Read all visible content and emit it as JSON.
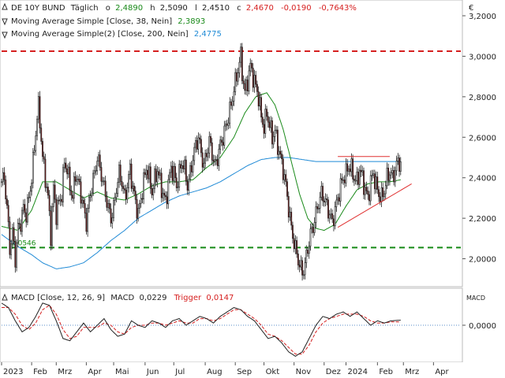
{
  "chart_data": [
    {
      "type": "line",
      "panel": "price",
      "currency_label": "€",
      "legend": [
        {
          "prefix": "DE 10Y BUND",
          "interval": "Täglich",
          "o_label": "o",
          "o": "2,4890",
          "h_label": "h",
          "h": "2,5090",
          "l_label": "l",
          "l": "2,4510",
          "c_label": "c",
          "c": "2,4670",
          "change": "-0,0190",
          "change_pct": "-0,7643%"
        },
        {
          "name": "Moving Average Simple [Close, 38, Nein]",
          "value": "2,3893",
          "color": "#1a8a1a"
        },
        {
          "name": "Moving Average Simple(2) [Close, 200, Nein]",
          "value": "2,4775",
          "color": "#1f8ad6"
        }
      ],
      "y_ticks": [
        "3,2000",
        "3,0000",
        "2,8000",
        "2,6000",
        "2,4000",
        "2,2000",
        "2,0000"
      ],
      "y_tick_values": [
        3.2,
        3.0,
        2.8,
        2.6,
        2.4,
        2.2,
        2.0
      ],
      "ylim": [
        1.87,
        3.27
      ],
      "x_labels": [
        "2023",
        "Feb",
        "Mrz",
        "Apr",
        "Mai",
        "Jun",
        "Jul",
        "Aug",
        "Sep",
        "Okt",
        "Nov",
        "Dez",
        "2024",
        "Feb",
        "Mrz",
        "Apr"
      ],
      "x_label_positions": [
        0,
        22,
        40,
        62,
        82,
        105,
        126,
        149,
        171,
        192,
        214,
        236,
        252,
        275,
        294,
        316
      ],
      "x_range": [
        0,
        336
      ],
      "close_anchors": [
        [
          0,
          2.38
        ],
        [
          2,
          2.4
        ],
        [
          4,
          2.25
        ],
        [
          6,
          2.05
        ],
        [
          8,
          2.13
        ],
        [
          10,
          2.0
        ],
        [
          12,
          2.15
        ],
        [
          14,
          2.18
        ],
        [
          16,
          2.25
        ],
        [
          18,
          2.22
        ],
        [
          20,
          2.3
        ],
        [
          22,
          2.4
        ],
        [
          24,
          2.55
        ],
        [
          26,
          2.7
        ],
        [
          27,
          2.75
        ],
        [
          28,
          2.68
        ],
        [
          30,
          2.5
        ],
        [
          32,
          2.4
        ],
        [
          34,
          2.3
        ],
        [
          36,
          2.12
        ],
        [
          38,
          2.35
        ],
        [
          40,
          2.22
        ],
        [
          42,
          2.28
        ],
        [
          44,
          2.32
        ],
        [
          46,
          2.48
        ],
        [
          48,
          2.44
        ],
        [
          50,
          2.36
        ],
        [
          52,
          2.3
        ],
        [
          54,
          2.42
        ],
        [
          56,
          2.38
        ],
        [
          58,
          2.32
        ],
        [
          60,
          2.25
        ],
        [
          62,
          2.18
        ],
        [
          64,
          2.28
        ],
        [
          66,
          2.36
        ],
        [
          68,
          2.42
        ],
        [
          70,
          2.5
        ],
        [
          72,
          2.45
        ],
        [
          74,
          2.38
        ],
        [
          76,
          2.32
        ],
        [
          78,
          2.25
        ],
        [
          80,
          2.2
        ],
        [
          82,
          2.25
        ],
        [
          84,
          2.35
        ],
        [
          86,
          2.42
        ],
        [
          88,
          2.38
        ],
        [
          90,
          2.3
        ],
        [
          92,
          2.36
        ],
        [
          94,
          2.44
        ],
        [
          96,
          2.35
        ],
        [
          98,
          2.28
        ],
        [
          100,
          2.22
        ],
        [
          102,
          2.3
        ],
        [
          104,
          2.38
        ],
        [
          106,
          2.45
        ],
        [
          108,
          2.4
        ],
        [
          110,
          2.33
        ],
        [
          112,
          2.39
        ],
        [
          114,
          2.44
        ],
        [
          116,
          2.38
        ],
        [
          118,
          2.32
        ],
        [
          120,
          2.28
        ],
        [
          122,
          2.37
        ],
        [
          124,
          2.45
        ],
        [
          126,
          2.42
        ],
        [
          128,
          2.36
        ],
        [
          130,
          2.42
        ],
        [
          132,
          2.48
        ],
        [
          134,
          2.44
        ],
        [
          136,
          2.36
        ],
        [
          138,
          2.42
        ],
        [
          140,
          2.5
        ],
        [
          142,
          2.56
        ],
        [
          144,
          2.6
        ],
        [
          146,
          2.52
        ],
        [
          148,
          2.46
        ],
        [
          150,
          2.52
        ],
        [
          152,
          2.58
        ],
        [
          154,
          2.52
        ],
        [
          156,
          2.46
        ],
        [
          158,
          2.5
        ],
        [
          160,
          2.56
        ],
        [
          162,
          2.6
        ],
        [
          164,
          2.65
        ],
        [
          166,
          2.7
        ],
        [
          168,
          2.76
        ],
        [
          170,
          2.84
        ],
        [
          172,
          2.9
        ],
        [
          174,
          2.97
        ],
        [
          175,
          3.0
        ],
        [
          176,
          2.92
        ],
        [
          178,
          2.82
        ],
        [
          180,
          2.88
        ],
        [
          182,
          2.95
        ],
        [
          184,
          2.9
        ],
        [
          186,
          2.85
        ],
        [
          188,
          2.8
        ],
        [
          190,
          2.7
        ],
        [
          192,
          2.65
        ],
        [
          194,
          2.72
        ],
        [
          196,
          2.66
        ],
        [
          198,
          2.6
        ],
        [
          200,
          2.63
        ],
        [
          202,
          2.56
        ],
        [
          204,
          2.5
        ],
        [
          206,
          2.44
        ],
        [
          208,
          2.36
        ],
        [
          210,
          2.25
        ],
        [
          212,
          2.15
        ],
        [
          214,
          2.08
        ],
        [
          216,
          2.02
        ],
        [
          218,
          1.97
        ],
        [
          220,
          1.93
        ],
        [
          222,
          1.97
        ],
        [
          224,
          2.05
        ],
        [
          226,
          2.12
        ],
        [
          228,
          2.16
        ],
        [
          230,
          2.22
        ],
        [
          232,
          2.28
        ],
        [
          234,
          2.32
        ],
        [
          236,
          2.3
        ],
        [
          238,
          2.26
        ],
        [
          240,
          2.22
        ],
        [
          242,
          2.18
        ],
        [
          244,
          2.24
        ],
        [
          246,
          2.3
        ],
        [
          248,
          2.36
        ],
        [
          250,
          2.4
        ],
        [
          252,
          2.42
        ],
        [
          254,
          2.46
        ],
        [
          256,
          2.44
        ],
        [
          258,
          2.4
        ],
        [
          260,
          2.38
        ],
        [
          262,
          2.44
        ],
        [
          264,
          2.4
        ],
        [
          266,
          2.34
        ],
        [
          268,
          2.3
        ],
        [
          270,
          2.38
        ],
        [
          272,
          2.42
        ],
        [
          274,
          2.36
        ],
        [
          276,
          2.32
        ],
        [
          278,
          2.3
        ],
        [
          280,
          2.34
        ],
        [
          282,
          2.4
        ],
        [
          284,
          2.43
        ],
        [
          286,
          2.4
        ],
        [
          288,
          2.44
        ],
        [
          290,
          2.48
        ],
        [
          292,
          2.47
        ]
      ],
      "sma38_anchors": [
        [
          0,
          2.16
        ],
        [
          12,
          2.14
        ],
        [
          22,
          2.24
        ],
        [
          30,
          2.38
        ],
        [
          40,
          2.38
        ],
        [
          50,
          2.34
        ],
        [
          60,
          2.3
        ],
        [
          70,
          2.33
        ],
        [
          80,
          2.3
        ],
        [
          90,
          2.29
        ],
        [
          100,
          2.32
        ],
        [
          110,
          2.36
        ],
        [
          120,
          2.38
        ],
        [
          130,
          2.38
        ],
        [
          140,
          2.39
        ],
        [
          150,
          2.45
        ],
        [
          160,
          2.5
        ],
        [
          170,
          2.6
        ],
        [
          178,
          2.72
        ],
        [
          186,
          2.8
        ],
        [
          194,
          2.82
        ],
        [
          200,
          2.76
        ],
        [
          206,
          2.64
        ],
        [
          212,
          2.48
        ],
        [
          218,
          2.32
        ],
        [
          224,
          2.2
        ],
        [
          230,
          2.15
        ],
        [
          236,
          2.14
        ],
        [
          244,
          2.17
        ],
        [
          252,
          2.26
        ],
        [
          260,
          2.34
        ],
        [
          268,
          2.37
        ],
        [
          276,
          2.38
        ],
        [
          284,
          2.38
        ],
        [
          292,
          2.39
        ]
      ],
      "sma200_anchors": [
        [
          0,
          2.12
        ],
        [
          12,
          2.06
        ],
        [
          22,
          2.02
        ],
        [
          30,
          1.98
        ],
        [
          40,
          1.95
        ],
        [
          50,
          1.96
        ],
        [
          60,
          1.98
        ],
        [
          70,
          2.03
        ],
        [
          80,
          2.09
        ],
        [
          90,
          2.14
        ],
        [
          100,
          2.2
        ],
        [
          110,
          2.24
        ],
        [
          120,
          2.28
        ],
        [
          130,
          2.31
        ],
        [
          140,
          2.33
        ],
        [
          150,
          2.35
        ],
        [
          160,
          2.38
        ],
        [
          170,
          2.42
        ],
        [
          180,
          2.46
        ],
        [
          190,
          2.49
        ],
        [
          200,
          2.5
        ],
        [
          210,
          2.5
        ],
        [
          220,
          2.49
        ],
        [
          230,
          2.48
        ],
        [
          240,
          2.48
        ],
        [
          250,
          2.48
        ],
        [
          260,
          2.48
        ],
        [
          270,
          2.48
        ],
        [
          280,
          2.48
        ],
        [
          292,
          2.48
        ]
      ],
      "horizontal_lines": [
        {
          "y": 3.025,
          "color": "#d62020",
          "style": "dashed"
        },
        {
          "y": 2.055,
          "color": "#168a16",
          "style": "dashed"
        }
      ],
      "line_marker_text": "2,0546",
      "trendlines": [
        {
          "from": [
            246,
            2.505
          ],
          "to": [
            284,
            2.505
          ],
          "color": "#e03030"
        },
        {
          "from": [
            246,
            2.155
          ],
          "to": [
            300,
            2.37
          ],
          "color": "#e03030"
        }
      ],
      "grid": false
    },
    {
      "type": "line",
      "panel": "macd",
      "legend": {
        "name": "MACD [Close, 12, 26, 9]",
        "macd_label": "MACD",
        "macd_value": "0,0229",
        "trigger_label": "Trigger",
        "trigger_value": "0,0147",
        "trigger_color": "#d62020"
      },
      "axis_label": "MACD",
      "y_tick": "0,0000",
      "y_tick_value": 0,
      "ylim": [
        -0.16,
        0.16
      ],
      "macd_anchors": [
        [
          0,
          0.1
        ],
        [
          5,
          0.08
        ],
        [
          10,
          0.02
        ],
        [
          15,
          -0.03
        ],
        [
          20,
          -0.01
        ],
        [
          25,
          0.04
        ],
        [
          30,
          0.1
        ],
        [
          35,
          0.09
        ],
        [
          40,
          0.02
        ],
        [
          45,
          -0.06
        ],
        [
          50,
          -0.07
        ],
        [
          55,
          -0.03
        ],
        [
          60,
          0.01
        ],
        [
          65,
          -0.03
        ],
        [
          70,
          0.0
        ],
        [
          75,
          0.03
        ],
        [
          80,
          -0.02
        ],
        [
          85,
          -0.05
        ],
        [
          90,
          -0.04
        ],
        [
          95,
          0.02
        ],
        [
          100,
          0.0
        ],
        [
          105,
          -0.01
        ],
        [
          110,
          0.02
        ],
        [
          115,
          0.01
        ],
        [
          120,
          -0.01
        ],
        [
          125,
          0.02
        ],
        [
          130,
          0.03
        ],
        [
          135,
          0.0
        ],
        [
          140,
          0.02
        ],
        [
          145,
          0.04
        ],
        [
          150,
          0.03
        ],
        [
          155,
          0.01
        ],
        [
          160,
          0.04
        ],
        [
          165,
          0.06
        ],
        [
          170,
          0.08
        ],
        [
          175,
          0.07
        ],
        [
          180,
          0.04
        ],
        [
          185,
          0.02
        ],
        [
          190,
          -0.02
        ],
        [
          195,
          -0.06
        ],
        [
          200,
          -0.05
        ],
        [
          205,
          -0.08
        ],
        [
          210,
          -0.12
        ],
        [
          215,
          -0.14
        ],
        [
          220,
          -0.12
        ],
        [
          225,
          -0.06
        ],
        [
          230,
          0.0
        ],
        [
          235,
          0.04
        ],
        [
          240,
          0.03
        ],
        [
          245,
          0.05
        ],
        [
          250,
          0.06
        ],
        [
          255,
          0.04
        ],
        [
          260,
          0.06
        ],
        [
          265,
          0.03
        ],
        [
          270,
          0.0
        ],
        [
          275,
          0.02
        ],
        [
          280,
          0.01
        ],
        [
          285,
          0.02
        ],
        [
          292,
          0.023
        ]
      ],
      "trigger_anchors": [
        [
          0,
          0.08
        ],
        [
          5,
          0.08
        ],
        [
          10,
          0.05
        ],
        [
          15,
          0.0
        ],
        [
          20,
          -0.02
        ],
        [
          25,
          0.01
        ],
        [
          30,
          0.07
        ],
        [
          35,
          0.09
        ],
        [
          40,
          0.05
        ],
        [
          45,
          -0.02
        ],
        [
          50,
          -0.06
        ],
        [
          55,
          -0.05
        ],
        [
          60,
          -0.01
        ],
        [
          65,
          -0.01
        ],
        [
          70,
          -0.01
        ],
        [
          75,
          0.01
        ],
        [
          80,
          0.0
        ],
        [
          85,
          -0.03
        ],
        [
          90,
          -0.04
        ],
        [
          95,
          -0.01
        ],
        [
          100,
          0.0
        ],
        [
          105,
          0.0
        ],
        [
          110,
          0.01
        ],
        [
          115,
          0.01
        ],
        [
          120,
          0.0
        ],
        [
          125,
          0.01
        ],
        [
          130,
          0.02
        ],
        [
          135,
          0.01
        ],
        [
          140,
          0.01
        ],
        [
          145,
          0.03
        ],
        [
          150,
          0.03
        ],
        [
          155,
          0.02
        ],
        [
          160,
          0.03
        ],
        [
          165,
          0.05
        ],
        [
          170,
          0.07
        ],
        [
          175,
          0.07
        ],
        [
          180,
          0.05
        ],
        [
          185,
          0.03
        ],
        [
          190,
          0.0
        ],
        [
          195,
          -0.04
        ],
        [
          200,
          -0.05
        ],
        [
          205,
          -0.07
        ],
        [
          210,
          -0.1
        ],
        [
          215,
          -0.13
        ],
        [
          220,
          -0.13
        ],
        [
          225,
          -0.09
        ],
        [
          230,
          -0.03
        ],
        [
          235,
          0.01
        ],
        [
          240,
          0.03
        ],
        [
          245,
          0.04
        ],
        [
          250,
          0.05
        ],
        [
          255,
          0.05
        ],
        [
          260,
          0.05
        ],
        [
          265,
          0.04
        ],
        [
          270,
          0.02
        ],
        [
          275,
          0.01
        ],
        [
          280,
          0.01
        ],
        [
          285,
          0.015
        ],
        [
          292,
          0.0147
        ]
      ]
    }
  ]
}
